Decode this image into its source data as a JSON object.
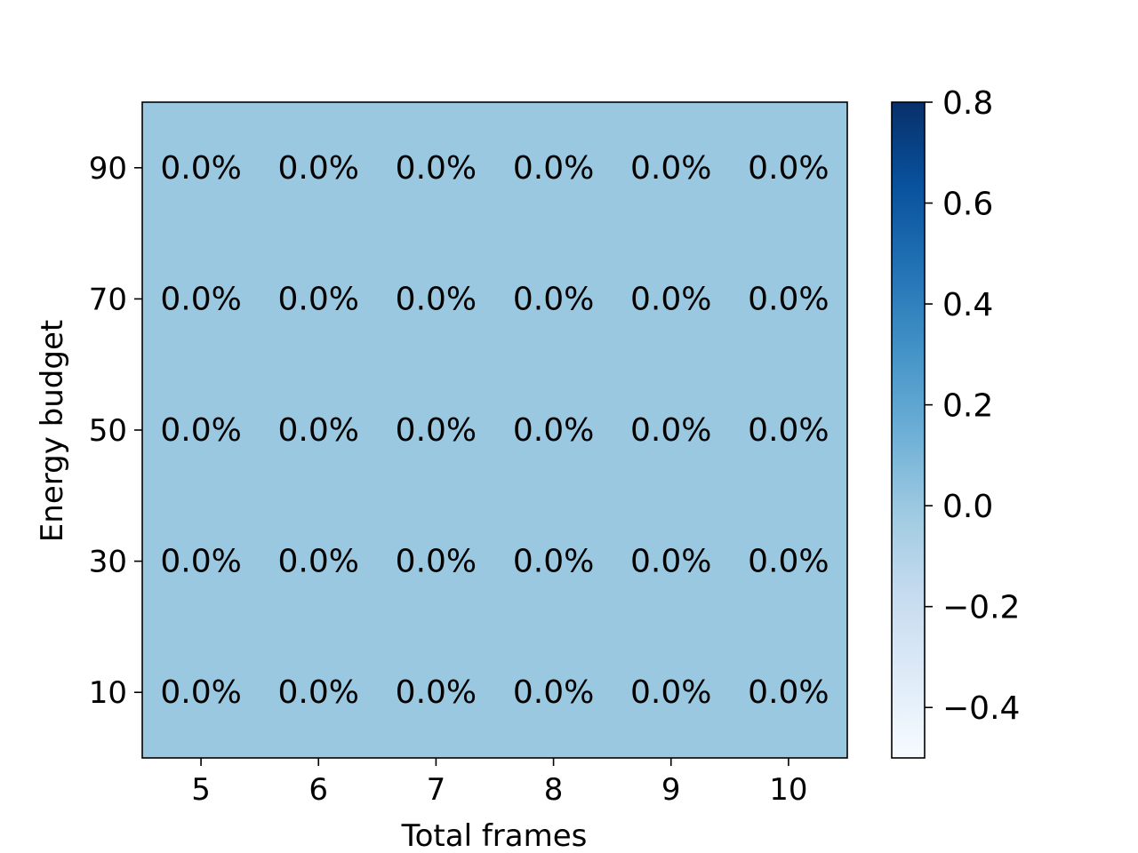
{
  "chart_data": {
    "type": "heatmap",
    "title": "",
    "xlabel": "Total frames",
    "ylabel": "Energy budget",
    "x": [
      5,
      6,
      7,
      8,
      9,
      10
    ],
    "y": [
      10,
      30,
      50,
      70,
      90
    ],
    "xlim": [
      4.5,
      10.5
    ],
    "ylim": [
      0,
      100
    ],
    "values": [
      [
        0.0,
        0.0,
        0.0,
        0.0,
        0.0,
        0.0
      ],
      [
        0.0,
        0.0,
        0.0,
        0.0,
        0.0,
        0.0
      ],
      [
        0.0,
        0.0,
        0.0,
        0.0,
        0.0,
        0.0
      ],
      [
        0.0,
        0.0,
        0.0,
        0.0,
        0.0,
        0.0
      ],
      [
        0.0,
        0.0,
        0.0,
        0.0,
        0.0,
        0.0
      ]
    ],
    "cell_labels": [
      [
        "0.0%",
        "0.0%",
        "0.0%",
        "0.0%",
        "0.0%",
        "0.0%"
      ],
      [
        "0.0%",
        "0.0%",
        "0.0%",
        "0.0%",
        "0.0%",
        "0.0%"
      ],
      [
        "0.0%",
        "0.0%",
        "0.0%",
        "0.0%",
        "0.0%",
        "0.0%"
      ],
      [
        "0.0%",
        "0.0%",
        "0.0%",
        "0.0%",
        "0.0%",
        "0.0%"
      ],
      [
        "0.0%",
        "0.0%",
        "0.0%",
        "0.0%",
        "0.0%",
        "0.0%"
      ]
    ],
    "colormap": "Blues",
    "colormap_stops": [
      "#f7fbff",
      "#deebf7",
      "#c6dbef",
      "#9ecae1",
      "#6baed6",
      "#4292c6",
      "#2171b5",
      "#08519c",
      "#08306b"
    ],
    "cell_color": "#9ac8e0",
    "colorbar": {
      "range": [
        -0.5,
        0.8
      ],
      "ticks": [
        -0.4,
        -0.2,
        0.0,
        0.2,
        0.4,
        0.6,
        0.8
      ],
      "tick_labels": [
        "−0.4",
        "−0.2",
        "0.0",
        "0.2",
        "0.4",
        "0.6",
        "0.8"
      ]
    },
    "grid": false
  }
}
